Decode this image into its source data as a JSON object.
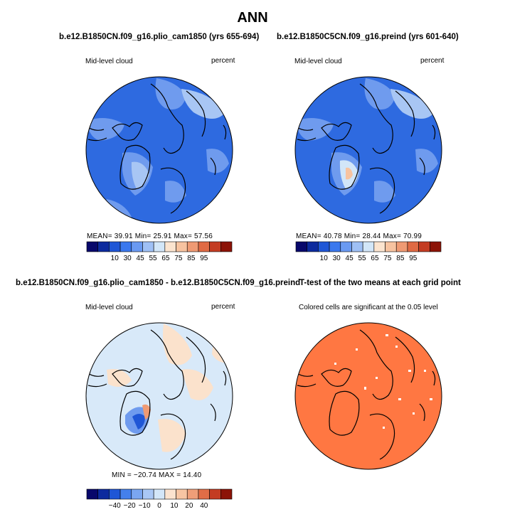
{
  "title": "ANN",
  "colors": {
    "seq": [
      "#08086b",
      "#0c2a9e",
      "#1f56d6",
      "#3a78ee",
      "#6a9af2",
      "#9fc0f5",
      "#d2e6f8",
      "#fbe4cf",
      "#f7c3a0",
      "#ef9a73",
      "#e06a44",
      "#c43c22",
      "#8c1307"
    ],
    "diff": [
      "#08086b",
      "#0c2a9e",
      "#1f56d6",
      "#4480ec",
      "#7aa6f1",
      "#a9c7f5",
      "#d3e6f8",
      "#fbe3cf",
      "#f7c5a3",
      "#ef9e78",
      "#e06d46",
      "#c43c22",
      "#8c1307"
    ],
    "sig": "#ff7742",
    "map_base": "#2e6ae0",
    "map_light": "#6f9bee",
    "map_lighter": "#a8c6f4",
    "diff_base": "#d8e9f9",
    "diff_warm": "#fbe2cc"
  },
  "chart_data": [
    {
      "type": "heatmap",
      "title": "b.e12.B1850CN.f09_g16.plio_cam1850 (yrs 655-694)",
      "field": "Mid-level cloud",
      "units": "percent",
      "stats": "MEAN=   39.91   Min=   25.91   Max=   57.56",
      "mean": 39.91,
      "min": 25.91,
      "max": 57.56,
      "colorbar_ticks": [
        "10",
        "30",
        "45",
        "55",
        "65",
        "75",
        "85",
        "95"
      ]
    },
    {
      "type": "heatmap",
      "title": "b.e12.B1850C5CN.f09_g16.preind (yrs 601-640)",
      "field": "Mid-level cloud",
      "units": "percent",
      "stats": "MEAN=   40.78   Min=   28.44   Max=   70.99",
      "mean": 40.78,
      "min": 28.44,
      "max": 70.99,
      "colorbar_ticks": [
        "10",
        "30",
        "45",
        "55",
        "65",
        "75",
        "85",
        "95"
      ]
    },
    {
      "type": "heatmap",
      "title": "b.e12.B1850CN.f09_g16.plio_cam1850 - b.e12.B1850C5CN.f09_g16.preind",
      "field": "Mid-level cloud",
      "units": "percent",
      "stats": "MIN = −20.74  MAX =  14.40",
      "min": -20.74,
      "max": 14.4,
      "colorbar_ticks": [
        "−40",
        "−20",
        "−10",
        "0",
        "10",
        "20",
        "40"
      ]
    },
    {
      "type": "heatmap",
      "title": "T-test of the two means at each grid point",
      "subtitle": "Colored cells are significant at the 0.05 level"
    }
  ]
}
